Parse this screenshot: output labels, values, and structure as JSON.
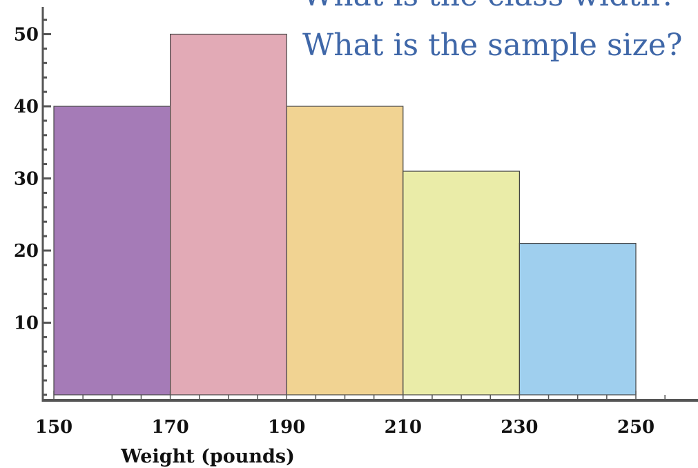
{
  "questions": [
    "What is the class width?",
    "What is the sample size?"
  ],
  "colors": {
    "question_text": "#3f67a8",
    "axis": "#555555",
    "bar_stroke": "#444444"
  },
  "chart_data": {
    "type": "bar",
    "subtype": "histogram",
    "bins": [
      {
        "start": 150,
        "end": 170,
        "value": 40,
        "color": "#a57bb7"
      },
      {
        "start": 170,
        "end": 190,
        "value": 50,
        "color": "#e2aab6"
      },
      {
        "start": 190,
        "end": 210,
        "value": 40,
        "color": "#f1d392"
      },
      {
        "start": 210,
        "end": 230,
        "value": 31,
        "color": "#eaeca8"
      },
      {
        "start": 230,
        "end": 250,
        "value": 21,
        "color": "#9fcfee"
      }
    ],
    "xlabel": "Weight (pounds)",
    "ylabel": "",
    "x_ticks": [
      150,
      170,
      190,
      210,
      230,
      250
    ],
    "y_ticks": [
      10,
      20,
      30,
      40,
      50
    ],
    "xlim": [
      148,
      260
    ],
    "ylim": [
      0,
      55
    ],
    "grid": false
  }
}
